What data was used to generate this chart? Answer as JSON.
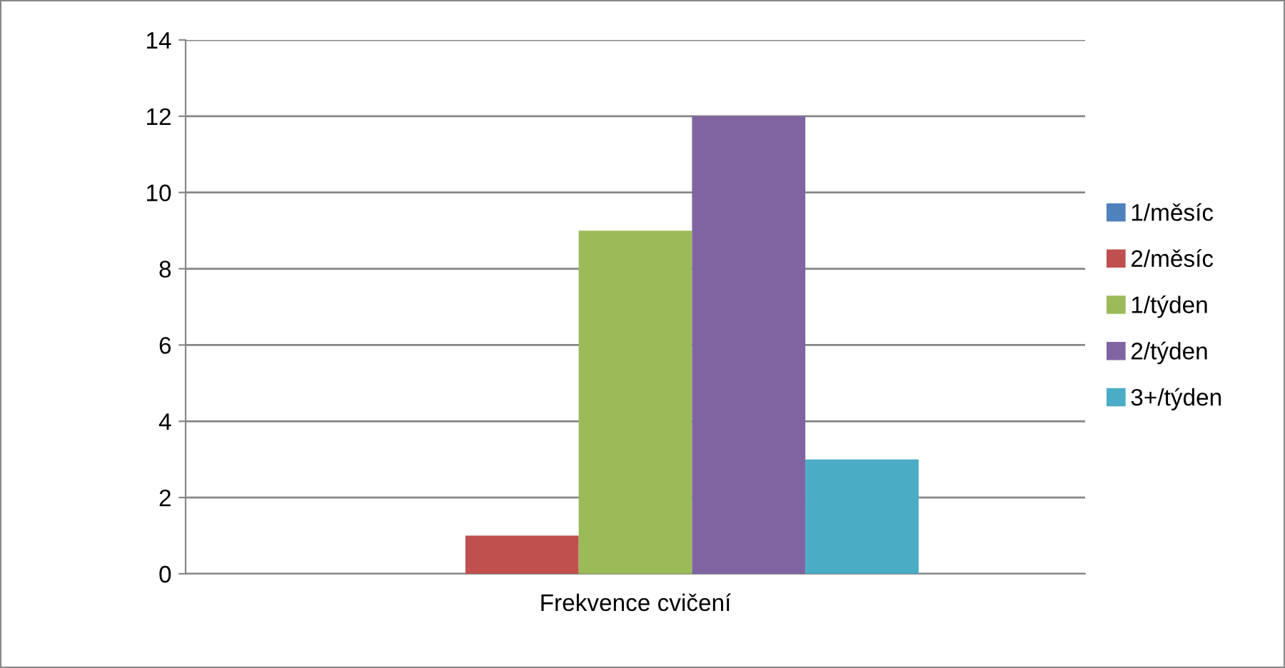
{
  "chart_data": {
    "type": "bar",
    "categories": [
      "Frekvence cvičení"
    ],
    "series": [
      {
        "name": "1/měsíc",
        "color": "#4f81bd",
        "values": [
          0
        ]
      },
      {
        "name": "2/měsíc",
        "color": "#c0504d",
        "values": [
          1
        ]
      },
      {
        "name": "1/týden",
        "color": "#9bbb59",
        "values": [
          9
        ]
      },
      {
        "name": "2/týden",
        "color": "#8064a2",
        "values": [
          12
        ]
      },
      {
        "name": "3+/týden",
        "color": "#4bacc6",
        "values": [
          3
        ]
      }
    ],
    "ylim": [
      0,
      14
    ],
    "yticks": [
      0,
      2,
      4,
      6,
      8,
      10,
      12,
      14
    ],
    "grid": "y",
    "legend": "right"
  }
}
